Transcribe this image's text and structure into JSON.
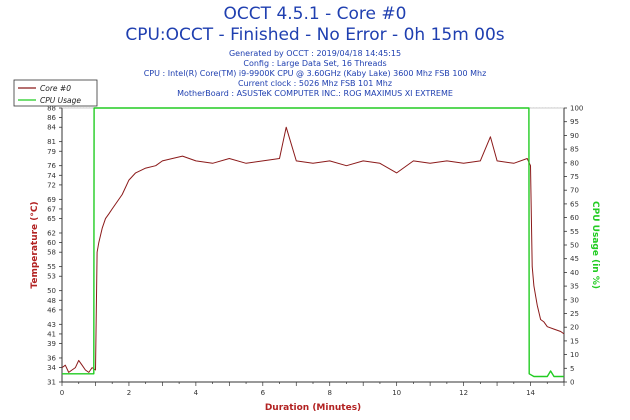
{
  "header": {
    "title": "OCCT 4.5.1 - Core #0",
    "subtitle": "CPU:OCCT - Finished - No Error - 0h 15m 00s",
    "info": [
      "Generated by OCCT : 2019/04/18 14:45:15",
      "Config : Large Data Set, 16 Threads",
      "CPU : Intel(R) Core(TM) i9-9900K CPU @ 3.60GHz (Kaby Lake) 3600 Mhz FSB 100 Mhz",
      "Current clock : 5026 Mhz FSB 101 Mhz",
      "MotherBoard : ASUSTeK COMPUTER INC.: ROG MAXIMUS XI EXTREME"
    ]
  },
  "colors": {
    "temperature": "#8b1a1a",
    "cpu_usage": "#22cc22",
    "axis_left": "#b22222",
    "axis_right": "#22cc22",
    "axis_bottom": "#b22222"
  },
  "chart_data": {
    "type": "line",
    "xlabel": "Duration (Minutes)",
    "ylabel_left": "Temperature (°C)",
    "ylabel_right": "CPU Usage (in %)",
    "xlim": [
      0,
      15
    ],
    "ylim_left": [
      31,
      88
    ],
    "ylim_right": [
      0,
      100
    ],
    "x_ticks": [
      0,
      2,
      4,
      6,
      8,
      10,
      12,
      14
    ],
    "y_ticks_left": [
      31,
      34,
      36,
      39,
      41,
      43,
      46,
      48,
      50,
      53,
      55,
      58,
      60,
      62,
      65,
      67,
      69,
      72,
      74,
      76,
      79,
      81,
      84,
      86,
      88
    ],
    "y_ticks_right": [
      0,
      5,
      10,
      15,
      20,
      25,
      30,
      35,
      40,
      45,
      50,
      55,
      60,
      65,
      70,
      75,
      80,
      85,
      90,
      95,
      100
    ],
    "legend": {
      "position": "top-left",
      "entries": [
        "Core #0",
        "CPU Usage"
      ]
    },
    "grid": true,
    "series": [
      {
        "name": "Core #0",
        "axis": "left",
        "x": [
          0,
          0.1,
          0.2,
          0.3,
          0.4,
          0.5,
          0.6,
          0.7,
          0.8,
          0.9,
          1.0,
          1.05,
          1.1,
          1.2,
          1.3,
          1.4,
          1.5,
          1.6,
          1.8,
          2.0,
          2.2,
          2.5,
          2.8,
          3.0,
          3.3,
          3.6,
          4.0,
          4.5,
          5.0,
          5.5,
          6.0,
          6.5,
          6.7,
          7.0,
          7.5,
          8.0,
          8.5,
          9.0,
          9.5,
          10.0,
          10.5,
          11.0,
          11.5,
          12.0,
          12.5,
          12.8,
          13.0,
          13.5,
          13.9,
          14.0,
          14.05,
          14.1,
          14.2,
          14.3,
          14.4,
          14.5,
          14.7,
          14.9,
          15.0
        ],
        "values": [
          34,
          34.5,
          33,
          33.5,
          34,
          35.5,
          34.5,
          33.5,
          33,
          34,
          33.5,
          58,
          60,
          63,
          65,
          66,
          67,
          68,
          70,
          73,
          74.5,
          75.5,
          76,
          77,
          77.5,
          78,
          77,
          76.5,
          77.5,
          76.5,
          77,
          77.5,
          84,
          77,
          76.5,
          77,
          76,
          77,
          76.5,
          74.5,
          77,
          76.5,
          77,
          76.5,
          77,
          82,
          77,
          76.5,
          77.5,
          76,
          55,
          51,
          47,
          44,
          43.5,
          42.5,
          42,
          41.5,
          41
        ]
      },
      {
        "name": "CPU Usage",
        "axis": "right",
        "x": [
          0,
          0.95,
          0.96,
          1.0,
          2.0,
          4.0,
          6.0,
          8.0,
          10.0,
          12.0,
          13.95,
          13.96,
          14.1,
          14.5,
          14.6,
          14.7,
          15.0
        ],
        "values": [
          3,
          3,
          100,
          100,
          100,
          100,
          100,
          100,
          100,
          100,
          100,
          3,
          2,
          2,
          4,
          2,
          2
        ]
      }
    ]
  }
}
